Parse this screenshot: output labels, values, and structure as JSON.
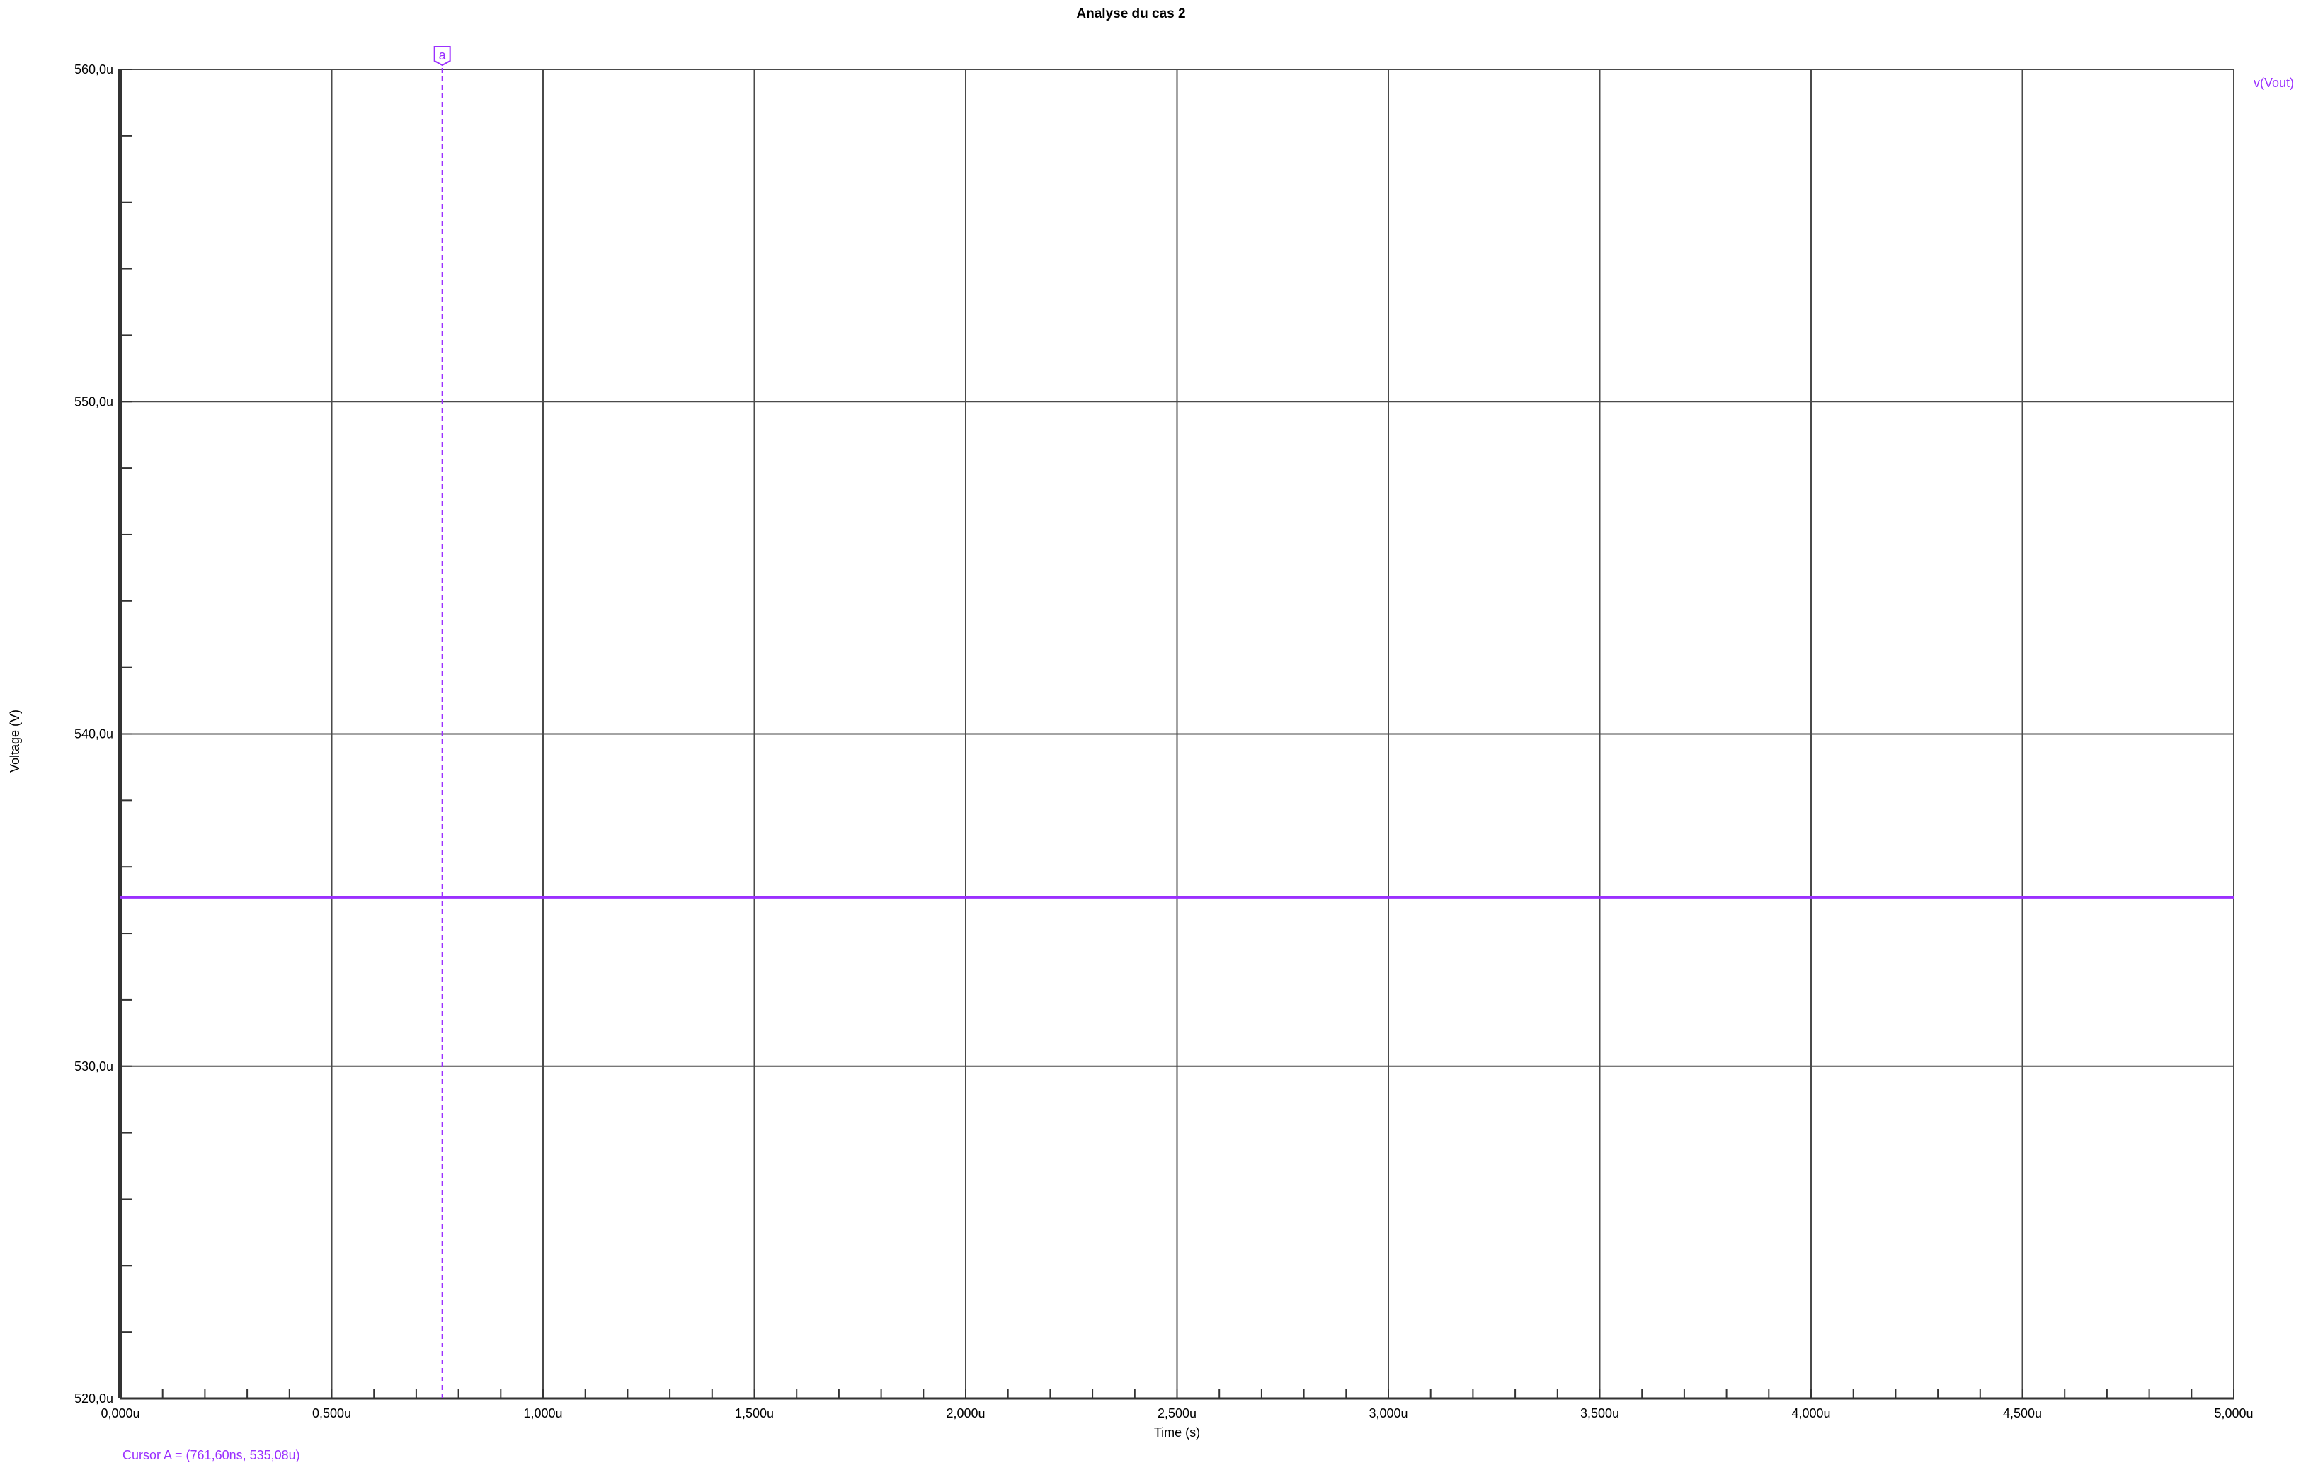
{
  "chart_data": {
    "type": "line",
    "title": "Analyse du cas 2",
    "xlabel": "Time (s)",
    "ylabel": "Voltage (V)",
    "xlim": [
      0,
      5
    ],
    "ylim": [
      520,
      560
    ],
    "x_unit": "u",
    "y_unit": "u",
    "x_ticks": [
      0,
      0.5,
      1,
      1.5,
      2,
      2.5,
      3,
      3.5,
      4,
      4.5,
      5
    ],
    "x_tick_labels": [
      "0,000u",
      "0,500u",
      "1,000u",
      "1,500u",
      "2,000u",
      "2,500u",
      "3,000u",
      "3,500u",
      "4,000u",
      "4,500u",
      "5,000u"
    ],
    "y_ticks": [
      520,
      530,
      540,
      550,
      560
    ],
    "y_tick_labels": [
      "520,0u",
      "530,0u",
      "540,0u",
      "550,0u",
      "560,0u"
    ],
    "grid": true,
    "legend_position": "top-right",
    "series": [
      {
        "name": "v(Vout)",
        "color": "#9b30ff",
        "x": [
          0,
          5
        ],
        "y": [
          535.08,
          535.08
        ]
      }
    ],
    "cursor": {
      "marker": "a",
      "x": 0.7616,
      "y": 535.08,
      "color": "#9b30ff",
      "readout": "Cursor A = (761,60ns, 535,08u)"
    }
  }
}
